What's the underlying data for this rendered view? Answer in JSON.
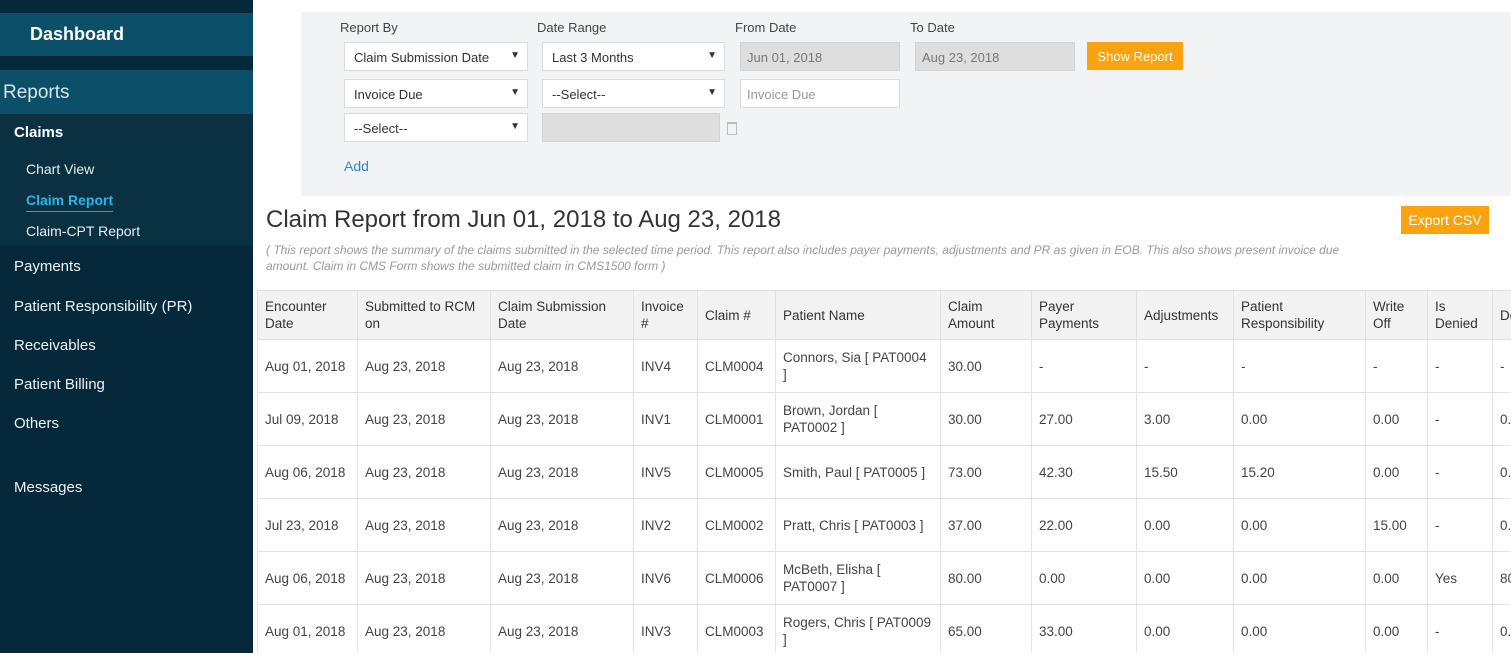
{
  "sidebar": {
    "dashboard": "Dashboard",
    "reports": "Reports",
    "claims": "Claims",
    "claims_items": [
      "Chart View",
      "Claim Report",
      "Claim-CPT Report"
    ],
    "items": [
      "Payments",
      "Patient Responsibility (PR)",
      "Receivables",
      "Patient Billing",
      "Others",
      "Messages"
    ]
  },
  "filters": {
    "report_by_label": "Report By",
    "date_range_label": "Date Range",
    "from_label": "From Date",
    "to_label": "To Date",
    "report_by": "Claim Submission Date",
    "date_range": "Last 3 Months",
    "from_date": "Jun 01, 2018",
    "to_date": "Aug 23, 2018",
    "show_report": "Show Report",
    "row2_field": "Invoice Due",
    "row2_op": "--Select--",
    "row2_value_placeholder": "Invoice Due",
    "row3_field": "--Select--",
    "add": "Add"
  },
  "report": {
    "title": "Claim Report from Jun 01, 2018 to Aug 23, 2018",
    "export": "Export CSV",
    "description": "( This report shows the summary of the claims submitted in the selected time period. This report also includes payer payments, adjustments and PR as given in EOB. This also shows present invoice due amount. Claim in CMS Form shows the submitted claim in CMS1500 form )"
  },
  "table": {
    "headers": [
      "Encounter Date",
      "Submitted to RCM on",
      "Claim Submission Date",
      "Invoice #",
      "Claim #",
      "Patient Name",
      "Claim Amount",
      "Payer Payments",
      "Adjustments",
      "Patient Responsibility",
      "Write Off",
      "Is Denied",
      "De"
    ],
    "rows": [
      [
        "Aug 01, 2018",
        "Aug 23, 2018",
        "Aug 23, 2018",
        "INV4",
        "CLM0004",
        "Connors, Sia [ PAT0004 ]",
        "30.00",
        "-",
        "-",
        "-",
        "-",
        "-",
        "-"
      ],
      [
        "Jul 09, 2018",
        "Aug 23, 2018",
        "Aug 23, 2018",
        "INV1",
        "CLM0001",
        "Brown, Jordan [ PAT0002 ]",
        "30.00",
        "27.00",
        "3.00",
        "0.00",
        "0.00",
        "-",
        "0."
      ],
      [
        "Aug 06, 2018",
        "Aug 23, 2018",
        "Aug 23, 2018",
        "INV5",
        "CLM0005",
        "Smith, Paul [ PAT0005 ]",
        "73.00",
        "42.30",
        "15.50",
        "15.20",
        "0.00",
        "-",
        "0."
      ],
      [
        "Jul 23, 2018",
        "Aug 23, 2018",
        "Aug 23, 2018",
        "INV2",
        "CLM0002",
        "Pratt, Chris [ PAT0003 ]",
        "37.00",
        "22.00",
        "0.00",
        "0.00",
        "15.00",
        "-",
        "0."
      ],
      [
        "Aug 06, 2018",
        "Aug 23, 2018",
        "Aug 23, 2018",
        "INV6",
        "CLM0006",
        "McBeth, Elisha [ PAT0007 ]",
        "80.00",
        "0.00",
        "0.00",
        "0.00",
        "0.00",
        "Yes",
        "80"
      ],
      [
        "Aug 01, 2018",
        "Aug 23, 2018",
        "Aug 23, 2018",
        "INV3",
        "CLM0003",
        "Rogers, Chris [ PAT0009 ]",
        "65.00",
        "33.00",
        "0.00",
        "0.00",
        "0.00",
        "-",
        "0."
      ]
    ]
  },
  "colors": {
    "sidebar": "#05293a",
    "accent": "#fba20f",
    "active_link": "#29b6e8"
  }
}
